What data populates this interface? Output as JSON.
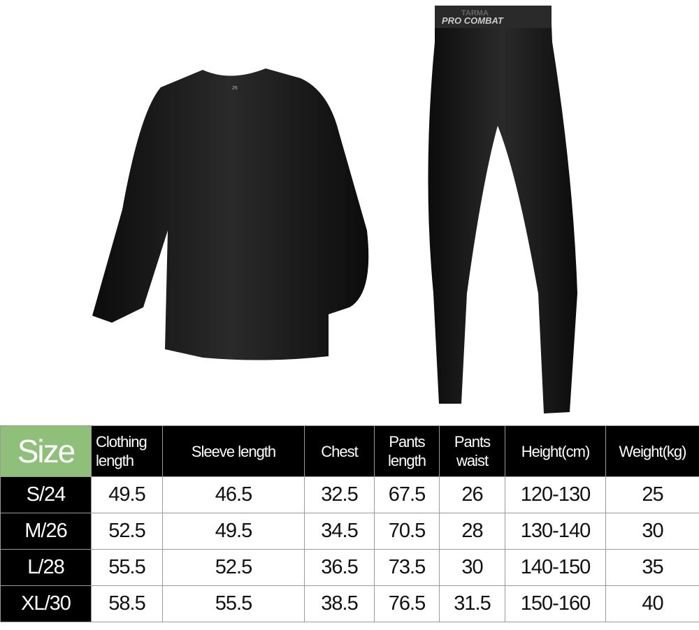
{
  "product": {
    "shirt_neck_label": "26",
    "waistband_text": [
      "TARMA",
      "PRO COMBAT"
    ]
  },
  "size_table": {
    "headers": [
      "Size",
      "Clothing length",
      "Sleeve length",
      "Chest",
      "Pants length",
      "Pants waist",
      "Height(cm)",
      "Weight(kg)"
    ],
    "header_lines": {
      "clothing": [
        "Clothing",
        "length"
      ],
      "pants_length": [
        "Pants",
        "length"
      ],
      "pants_waist": [
        "Pants",
        "waist"
      ]
    },
    "rows": [
      [
        "S/24",
        "49.5",
        "46.5",
        "32.5",
        "67.5",
        "26",
        "120-130",
        "25"
      ],
      [
        "M/26",
        "52.5",
        "49.5",
        "34.5",
        "70.5",
        "28",
        "130-140",
        "30"
      ],
      [
        "L/28",
        "55.5",
        "52.5",
        "36.5",
        "73.5",
        "30",
        "140-150",
        "35"
      ],
      [
        "XL/30",
        "58.5",
        "55.5",
        "38.5",
        "76.5",
        "31.5",
        "150-160",
        "40"
      ]
    ],
    "colors": {
      "size_header": "#8fc07a",
      "header_bg": "#000000"
    }
  }
}
